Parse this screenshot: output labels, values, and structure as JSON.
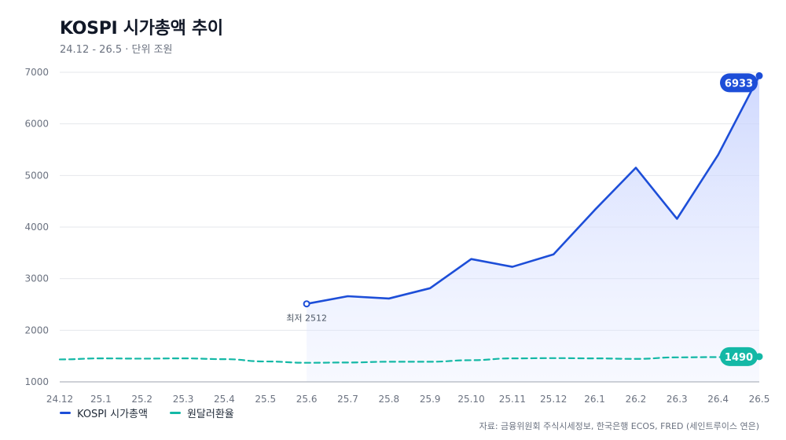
{
  "title": "KOSPI 시가총액 추이",
  "subtitle": "24.12 - 26.5 · 단위 조원",
  "source": "자료: 금융위원회 주식시세정보, 한국은행 ECOS, FRED (세인트루이스 연은)",
  "colors": {
    "kospi": "#1d4ed8",
    "fx": "#14b8a6",
    "area": "#c7d2fe",
    "grid": "#e5e7eb",
    "axis": "#9ca3af",
    "tick_text": "#6b7280"
  },
  "chart_data": {
    "type": "line",
    "categories": [
      "24.12",
      "25.1",
      "25.2",
      "25.3",
      "25.4",
      "25.5",
      "25.6",
      "25.7",
      "25.8",
      "25.9",
      "25.10",
      "25.11",
      "25.12",
      "26.1",
      "26.2",
      "26.3",
      "26.4",
      "26.5"
    ],
    "ylim": [
      1000,
      7000
    ],
    "yticks": [
      1000,
      2000,
      3000,
      4000,
      5000,
      6000,
      7000
    ],
    "grid": true,
    "legend_position": "bottom-left",
    "series": [
      {
        "name": "KOSPI 시가총액",
        "style": "solid-area",
        "values": [
          null,
          null,
          null,
          null,
          null,
          null,
          2512,
          2660,
          2615,
          2815,
          3380,
          3230,
          3470,
          4330,
          5150,
          4160,
          5400,
          6933
        ],
        "end_label": "6933",
        "min_label": "최저 2512"
      },
      {
        "name": "원달러환율",
        "style": "dashed",
        "values": [
          1435,
          1455,
          1450,
          1455,
          1440,
          1395,
          1370,
          1375,
          1390,
          1390,
          1420,
          1455,
          1460,
          1455,
          1445,
          1475,
          1480,
          1490
        ],
        "end_label": "1490"
      }
    ]
  }
}
